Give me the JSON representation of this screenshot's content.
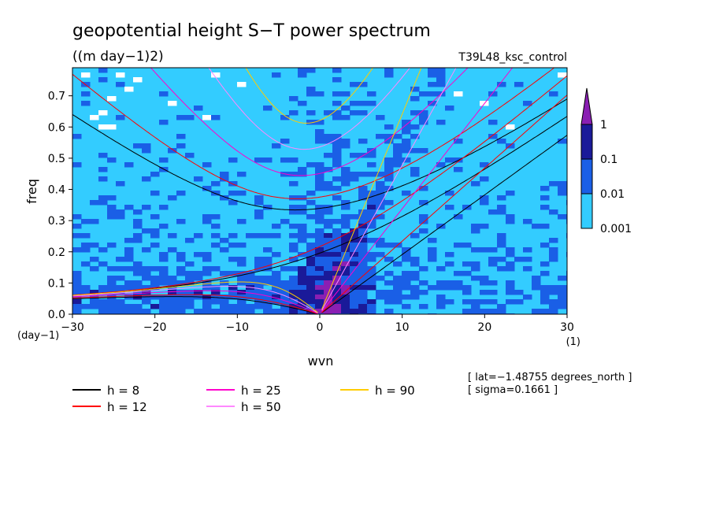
{
  "chart_data": {
    "type": "heatmap",
    "title": "geopotential height S−T power spectrum",
    "subtitle": "((m day−1)2)",
    "run_label": "T39L48_ksc_control",
    "xlabel": "wvn",
    "ylabel": "freq",
    "x_unit": "(1)",
    "y_unit": "(day−1)",
    "xlim": [
      -30,
      30
    ],
    "ylim": [
      0,
      0.79
    ],
    "x_ticks": [
      -30,
      -20,
      -10,
      0,
      10,
      20,
      30
    ],
    "x_tick_labels": [
      "−30",
      "−20",
      "−10",
      "0",
      "10",
      "20",
      "30"
    ],
    "y_ticks": [
      0,
      0.1,
      0.2,
      0.3,
      0.4,
      0.5,
      0.6,
      0.7
    ],
    "y_tick_labels": [
      "0.0",
      "0.1",
      "0.2",
      "0.3",
      "0.4",
      "0.5",
      "0.6",
      "0.7"
    ],
    "colorbar": {
      "levels": [
        "1",
        "0.1",
        "0.01",
        "0.001"
      ],
      "colors": [
        "#1a1a99",
        "#1a5fe6",
        "#33ccff",
        "#8a1fb3"
      ]
    },
    "series": [
      {
        "name": "h =  8",
        "color": "#000000",
        "equivalent_depth_m": 8
      },
      {
        "name": "h = 12",
        "color": "#ff0000",
        "equivalent_depth_m": 12
      },
      {
        "name": "h = 25",
        "color": "#ff00cc",
        "equivalent_depth_m": 25
      },
      {
        "name": "h = 50",
        "color": "#ff88ff",
        "equivalent_depth_m": 50
      },
      {
        "name": "h = 90",
        "color": "#ffcc00",
        "equivalent_depth_m": 90
      }
    ],
    "annotations": [
      "[ lat=−1.48755 degrees_north ]",
      "[ sigma=0.1661 ]"
    ]
  }
}
